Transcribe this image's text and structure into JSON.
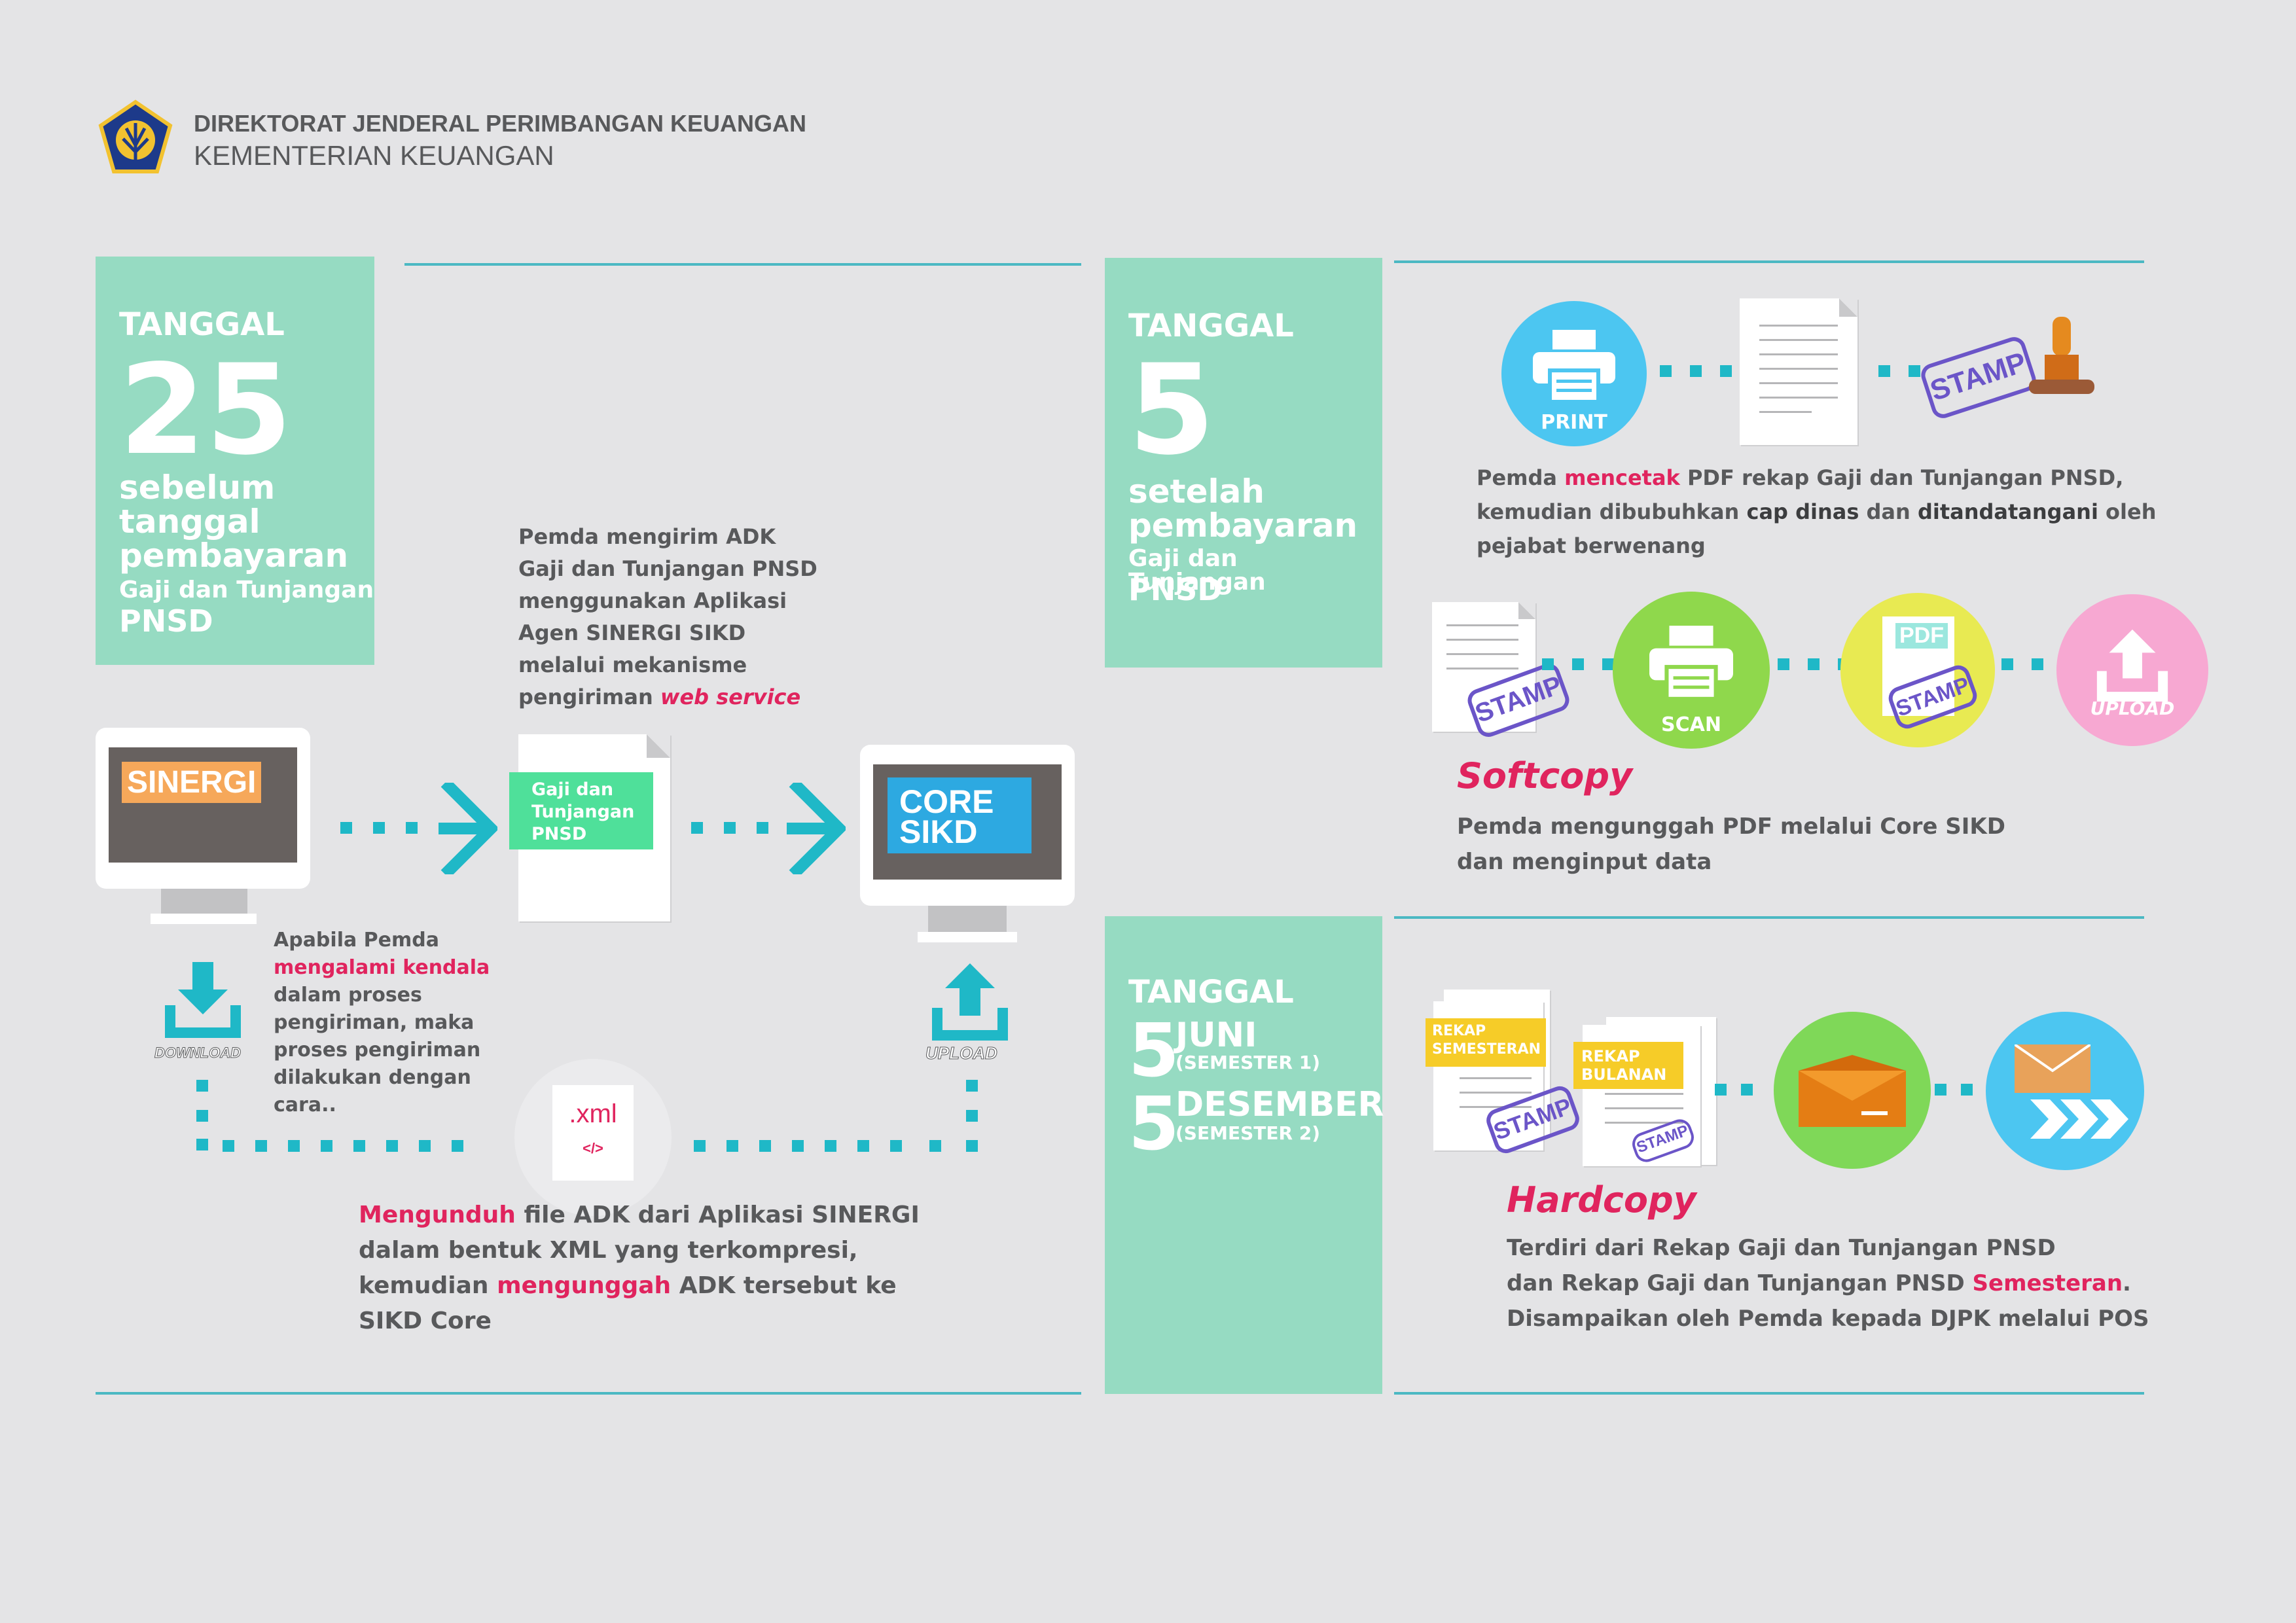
{
  "header": {
    "line1": "DIREKTORAT JENDERAL PERIMBANGAN KEUANGAN",
    "line2": "KEMENTERIAN KEUANGAN"
  },
  "section1": {
    "date_label": "TANGGAL",
    "date_number": "25",
    "date_lines": [
      "sebelum",
      "tanggal",
      "pembayaran"
    ],
    "date_small": "Gaji dan Tunjangan",
    "date_pnsd": "PNSD",
    "sinergi_label": "SINERGI",
    "core_label_1": "CORE",
    "core_label_2": "SIKD",
    "doc_label": [
      "Gaji dan",
      "Tunjangan",
      "PNSD"
    ],
    "send_text": [
      "Pemda mengirim ADK",
      "Gaji dan Tunjangan PNSD",
      "menggunakan Aplikasi",
      "Agen SINERGI SIKD",
      "melalui mekanisme"
    ],
    "send_text_last_prefix": "pengiriman ",
    "send_text_last_highlight": "web service",
    "download_label": "DOWNLOAD",
    "upload_label": "UPLOAD",
    "kendala_line1": "Apabila Pemda",
    "kendala_highlight": "mengalami kendala",
    "kendala_rest": [
      "dalam proses",
      "pengiriman, maka",
      "proses pengiriman",
      "dilakukan dengan",
      "cara.."
    ],
    "xml_label": ".xml",
    "xml_tag": "</>",
    "bottom_l1_highlight": "Mengunduh",
    "bottom_l1_rest": " file ADK dari Aplikasi SINERGI",
    "bottom_l2": "dalam bentuk XML yang terkompresi,",
    "bottom_l3_prefix": "kemudian ",
    "bottom_l3_highlight": "mengunggah",
    "bottom_l3_rest": " ADK tersebut ke",
    "bottom_l4": "SIKD Core"
  },
  "section2": {
    "date_label": "TANGGAL",
    "date_number": "5",
    "date_lines": [
      "setelah",
      "pembayaran"
    ],
    "date_small": "Gaji dan Tunjangan",
    "date_pnsd": "PNSD",
    "print_label": "PRINT",
    "stamp_label": "STAMP",
    "print_text_l1_prefix": "Pemda ",
    "print_text_l1_highlight": "mencetak",
    "print_text_l1_rest": " PDF rekap Gaji dan Tunjangan PNSD,",
    "print_text_l2_prefix": "kemudian dibubuhkan ",
    "print_text_l2_b1": "cap dinas",
    "print_text_l2_mid": " dan ",
    "print_text_l2_b2": "ditandatangani",
    "print_text_l2_rest": " oleh",
    "print_text_l3": "pejabat berwenang",
    "scan_label": "SCAN",
    "pdf_label": "PDF",
    "upload_label": "UPLOAD",
    "softcopy_title": "Softcopy",
    "softcopy_text": [
      "Pemda mengunggah PDF melalui Core SIKD",
      "dan menginput data"
    ]
  },
  "section3": {
    "date_label": "TANGGAL",
    "juni_num": "5",
    "juni_label": "JUNI",
    "juni_sub": "(SEMESTER 1)",
    "des_num": "5",
    "des_label": "DESEMBER",
    "des_sub": "(SEMESTER 2)",
    "rekap_semesteran": [
      "REKAP",
      "SEMESTERAN"
    ],
    "rekap_bulanan": [
      "REKAP",
      "BULANAN"
    ],
    "stamp_label": "STAMP",
    "hardcopy_title": "Hardcopy",
    "hardcopy_l1": "Terdiri dari Rekap Gaji dan Tunjangan PNSD",
    "hardcopy_l2_prefix": "dan Rekap Gaji dan Tunjangan PNSD ",
    "hardcopy_l2_highlight": "Semesteran",
    "hardcopy_l2_rest": ".",
    "hardcopy_l3": "Disampaikan oleh Pemda kepada DJPK melalui POS"
  },
  "colors": {
    "teal": "#1fb8c7",
    "mint": "#96dbc2",
    "highlight_red": "#e0245e",
    "print_blue": "#4cc6f1",
    "scan_green": "#8fd84c",
    "pdf_yellow": "#e8ea52",
    "upload_pink": "#f7a8d2",
    "mail_green": "#7fd858",
    "stamp_purple": "#6b55c8",
    "sinergi_orange": "#f6a85a",
    "core_blue": "#2da9e1"
  },
  "icons": [
    "ministry-logo-icon",
    "print-icon",
    "scan-icon",
    "upload-icon",
    "download-icon",
    "stamp-icon",
    "envelope-icon",
    "document-icon",
    "xml-file-icon",
    "arrow-right-icon"
  ]
}
